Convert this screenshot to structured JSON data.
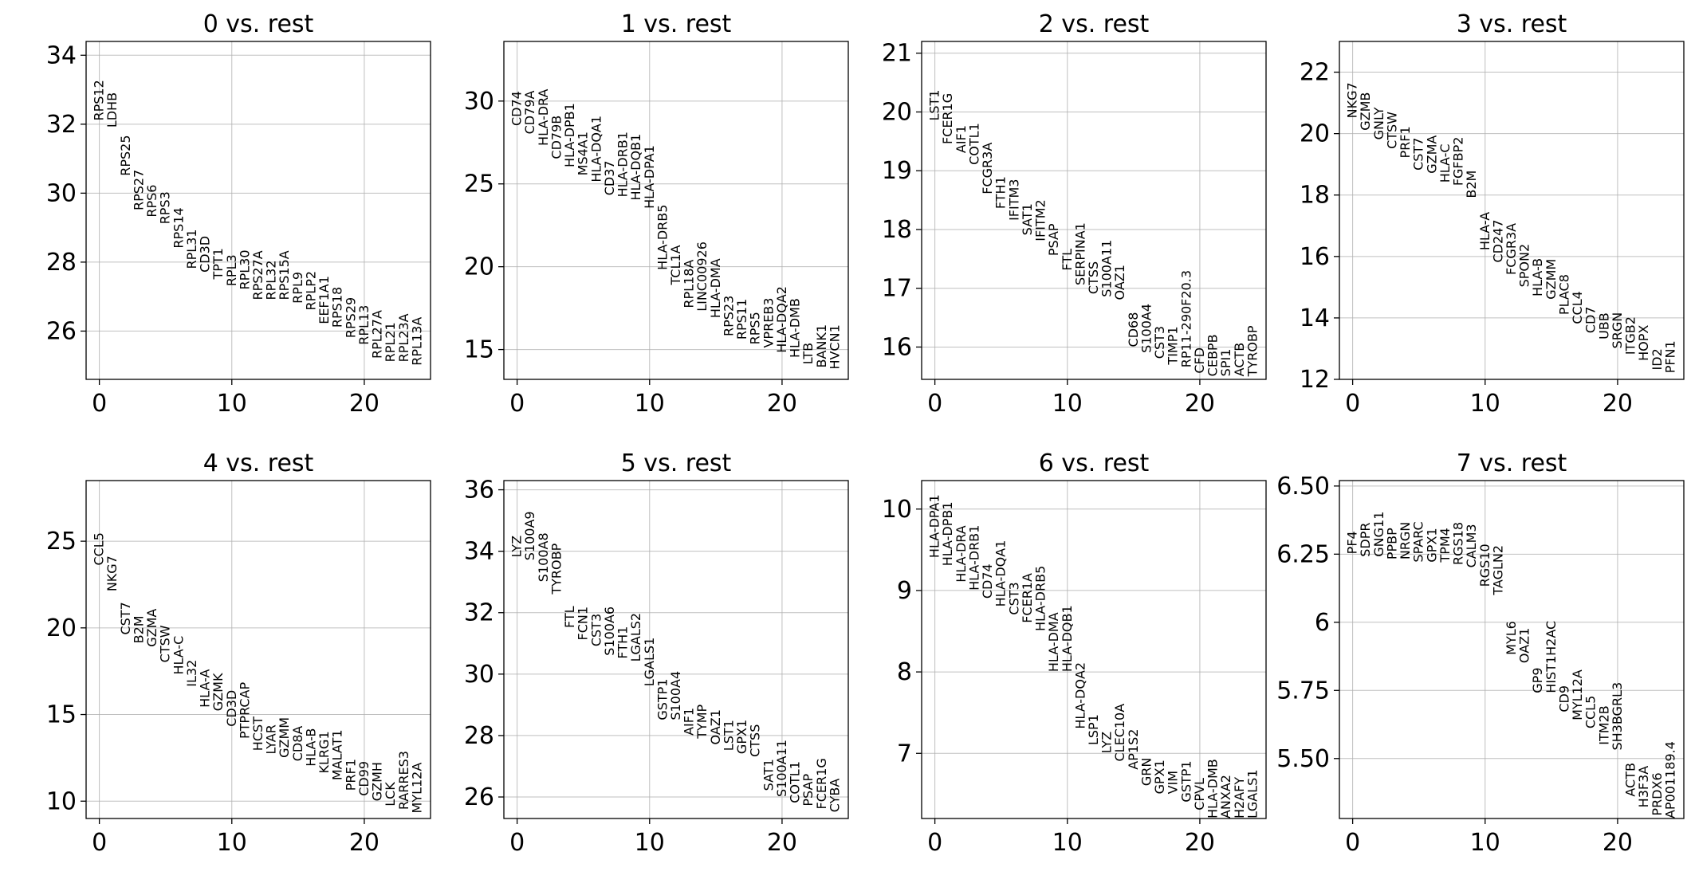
{
  "figure_title": "",
  "chart_data": [
    {
      "type": "scatter",
      "title": "0 vs. rest",
      "xlabel": "",
      "ylabel": "",
      "xlim": [
        -1,
        25
      ],
      "ylim": [
        24.6,
        34.4
      ],
      "xticks": [
        0,
        10,
        20
      ],
      "yticks": [
        26,
        28,
        30,
        32,
        34
      ],
      "genes": [
        "RPS12",
        "LDHB",
        "RPS25",
        "RPS27",
        "RPS6",
        "RPS3",
        "RPS14",
        "RPL31",
        "CD3D",
        "TPT1",
        "RPL3",
        "RPL30",
        "RPS27A",
        "RPL32",
        "RPS15A",
        "RPL9",
        "RPLP2",
        "EEF1A1",
        "RPS18",
        "RPS29",
        "RPL13",
        "RPL27A",
        "RPL21",
        "RPL23A",
        "RPL13A"
      ],
      "values": [
        32.1,
        31.9,
        30.5,
        29.5,
        29.3,
        29.1,
        28.4,
        27.8,
        27.7,
        27.5,
        27.3,
        27.2,
        26.9,
        26.9,
        26.9,
        26.8,
        26.6,
        26.2,
        26.1,
        25.8,
        25.6,
        25.2,
        25.1,
        25.1,
        25.0
      ]
    },
    {
      "type": "scatter",
      "title": "1 vs. rest",
      "xlabel": "",
      "ylabel": "",
      "xlim": [
        -1,
        25
      ],
      "ylim": [
        13.2,
        33.6
      ],
      "xticks": [
        0,
        10,
        20
      ],
      "yticks": [
        15,
        20,
        25,
        30
      ],
      "genes": [
        "CD74",
        "CD79A",
        "HLA-DRA",
        "CD79B",
        "HLA-DPB1",
        "MS4A1",
        "HLA-DQA1",
        "CD37",
        "HLA-DRB1",
        "HLA-DQB1",
        "HLA-DPA1",
        "HLA-DRB5",
        "TCL1A",
        "RPL18A",
        "LINC00926",
        "HLA-DMA",
        "RPS23",
        "RPS11",
        "RPS5",
        "VPREB3",
        "HLA-DQA2",
        "HLA-DMB",
        "LTB",
        "BANK1",
        "HVCN1"
      ],
      "values": [
        28.5,
        28.0,
        27.3,
        26.5,
        26.0,
        25.5,
        25.1,
        24.3,
        24.2,
        24.0,
        23.5,
        19.8,
        18.9,
        17.5,
        17.3,
        16.9,
        15.8,
        15.6,
        15.3,
        15.1,
        14.8,
        14.5,
        14.1,
        13.9,
        13.8
      ]
    },
    {
      "type": "scatter",
      "title": "2 vs. rest",
      "xlabel": "",
      "ylabel": "",
      "xlim": [
        -1,
        25
      ],
      "ylim": [
        15.45,
        21.2
      ],
      "xticks": [
        0,
        10,
        20
      ],
      "yticks": [
        16,
        17,
        18,
        19,
        20,
        21
      ],
      "genes": [
        "LST1",
        "FCER1G",
        "AIF1",
        "COTL1",
        "FCGR3A",
        "FTH1",
        "IFITM3",
        "SAT1",
        "IFITM2",
        "PSAP",
        "FTL",
        "SERPINA1",
        "CTSS",
        "S100A11",
        "OAZ1",
        "CD68",
        "S100A4",
        "CST3",
        "TIMP1",
        "RP11-290F20.3",
        "CFD",
        "CEBPB",
        "SPI1",
        "ACTB",
        "TYROBP"
      ],
      "values": [
        19.85,
        19.45,
        19.3,
        19.1,
        18.6,
        18.35,
        18.15,
        17.9,
        17.8,
        17.55,
        17.3,
        17.05,
        16.9,
        16.85,
        16.8,
        16.0,
        15.9,
        15.8,
        15.7,
        15.65,
        15.55,
        15.5,
        15.5,
        15.5,
        15.5
      ]
    },
    {
      "type": "scatter",
      "title": "3 vs. rest",
      "xlabel": "",
      "ylabel": "",
      "xlim": [
        -1,
        25
      ],
      "ylim": [
        12.0,
        23.0
      ],
      "xticks": [
        0,
        10,
        20
      ],
      "yticks": [
        12,
        14,
        16,
        18,
        20,
        22
      ],
      "genes": [
        "NKG7",
        "GZMB",
        "GNLY",
        "CTSW",
        "PRF1",
        "CST7",
        "GZMA",
        "HLA-C",
        "FGFBP2",
        "B2M",
        "HLA-A",
        "CD247",
        "FCGR3A",
        "SPON2",
        "HLA-B",
        "GZMM",
        "PLAC8",
        "CCL4",
        "CD7",
        "UBB",
        "SRGN",
        "ITGB2",
        "HOPX",
        "ID2",
        "PFN1"
      ],
      "values": [
        20.5,
        20.1,
        19.8,
        19.5,
        19.2,
        18.8,
        18.7,
        18.4,
        18.3,
        17.9,
        16.2,
        15.8,
        15.4,
        15.0,
        14.7,
        14.6,
        14.1,
        13.8,
        13.5,
        13.3,
        13.0,
        12.8,
        12.6,
        12.3,
        12.2
      ]
    },
    {
      "type": "scatter",
      "title": "4 vs. rest",
      "xlabel": "",
      "ylabel": "",
      "xlim": [
        -1,
        25
      ],
      "ylim": [
        9.0,
        28.5
      ],
      "xticks": [
        0,
        10,
        20
      ],
      "yticks": [
        10,
        15,
        20,
        25
      ],
      "genes": [
        "CCL5",
        "NKG7",
        "CST7",
        "B2M",
        "GZMA",
        "CTSW",
        "HLA-C",
        "IL32",
        "HLA-A",
        "GZMK",
        "CD3D",
        "PTPRCAP",
        "HCST",
        "LYAR",
        "GZMM",
        "CD8A",
        "HLA-B",
        "KLRG1",
        "MALAT1",
        "PRF1",
        "CD99",
        "GZMH",
        "LCK",
        "RARRES3",
        "MYL12A"
      ],
      "values": [
        23.6,
        22.1,
        19.6,
        19.1,
        18.9,
        18.0,
        17.3,
        16.6,
        15.4,
        15.2,
        14.3,
        13.6,
        12.9,
        12.7,
        12.5,
        12.3,
        12.0,
        11.6,
        11.2,
        10.6,
        10.3,
        10.0,
        9.7,
        9.5,
        9.3
      ]
    },
    {
      "type": "scatter",
      "title": "5 vs. rest",
      "xlabel": "",
      "ylabel": "",
      "xlim": [
        -1,
        25
      ],
      "ylim": [
        25.3,
        36.3
      ],
      "xticks": [
        0,
        10,
        20
      ],
      "yticks": [
        26,
        28,
        30,
        32,
        34,
        36
      ],
      "genes": [
        "LYZ",
        "S100A9",
        "S100A8",
        "TYROBP",
        "FTL",
        "FCN1",
        "CST3",
        "S100A6",
        "FTH1",
        "LGALS2",
        "LGALS1",
        "GSTP1",
        "S100A4",
        "AIF1",
        "TYMP",
        "OAZ1",
        "LST1",
        "GPX1",
        "CTSS",
        "SAT1",
        "S100A11",
        "COTL1",
        "PSAP",
        "FCER1G",
        "CYBA"
      ],
      "values": [
        33.8,
        33.7,
        33.0,
        32.6,
        31.5,
        31.1,
        30.9,
        30.6,
        30.5,
        30.4,
        29.6,
        28.5,
        28.5,
        28.0,
        27.9,
        27.7,
        27.5,
        27.4,
        27.3,
        26.2,
        26.0,
        25.8,
        25.7,
        25.6,
        25.5
      ]
    },
    {
      "type": "scatter",
      "title": "6 vs. rest",
      "xlabel": "",
      "ylabel": "",
      "xlim": [
        -1,
        25
      ],
      "ylim": [
        6.2,
        10.35
      ],
      "xticks": [
        0,
        10,
        20
      ],
      "yticks": [
        7,
        8,
        9,
        10
      ],
      "genes": [
        "HLA-DPA1",
        "HLA-DPB1",
        "HLA-DRA",
        "HLA-DRB1",
        "CD74",
        "HLA-DQA1",
        "CST3",
        "FCER1A",
        "HLA-DRB5",
        "HLA-DMA",
        "HLA-DQB1",
        "HLA-DQA2",
        "LSP1",
        "LYZ",
        "CLEC10A",
        "AP1S2",
        "GRN",
        "GPX1",
        "VIM",
        "GSTP1",
        "CPVL",
        "HLA-DMB",
        "ANXA2",
        "H2AFY",
        "LGALS1"
      ],
      "values": [
        9.4,
        9.3,
        9.1,
        9.0,
        8.9,
        8.8,
        8.7,
        8.6,
        8.5,
        8.0,
        8.0,
        7.3,
        7.1,
        7.0,
        6.9,
        6.8,
        6.6,
        6.5,
        6.5,
        6.4,
        6.3,
        6.2,
        6.2,
        6.2,
        6.2
      ]
    },
    {
      "type": "scatter",
      "title": "7 vs. rest",
      "xlabel": "",
      "ylabel": "",
      "xlim": [
        -1,
        25
      ],
      "ylim": [
        5.28,
        6.52
      ],
      "xticks": [
        0,
        10,
        20
      ],
      "yticks": [
        5.5,
        5.75,
        6.0,
        6.25,
        6.5
      ],
      "genes": [
        "PF4",
        "SDPR",
        "GNG11",
        "PPBP",
        "NRGN",
        "SPARC",
        "GPX1",
        "TPM4",
        "RGS18",
        "CALM3",
        "RGS10",
        "TAGLN2",
        "MYL6",
        "OAZ1",
        "GP9",
        "HIST1H2AC",
        "CD9",
        "MYL12A",
        "CCL5",
        "ITM2B",
        "SH3BGRL3",
        "ACTB",
        "H3F3A",
        "PRDX6",
        "AP001189.4"
      ],
      "values": [
        6.25,
        6.24,
        6.24,
        6.23,
        6.23,
        6.22,
        6.22,
        6.22,
        6.21,
        6.2,
        6.13,
        6.1,
        5.88,
        5.85,
        5.74,
        5.74,
        5.67,
        5.64,
        5.61,
        5.55,
        5.53,
        5.36,
        5.32,
        5.29,
        5.28
      ]
    }
  ]
}
